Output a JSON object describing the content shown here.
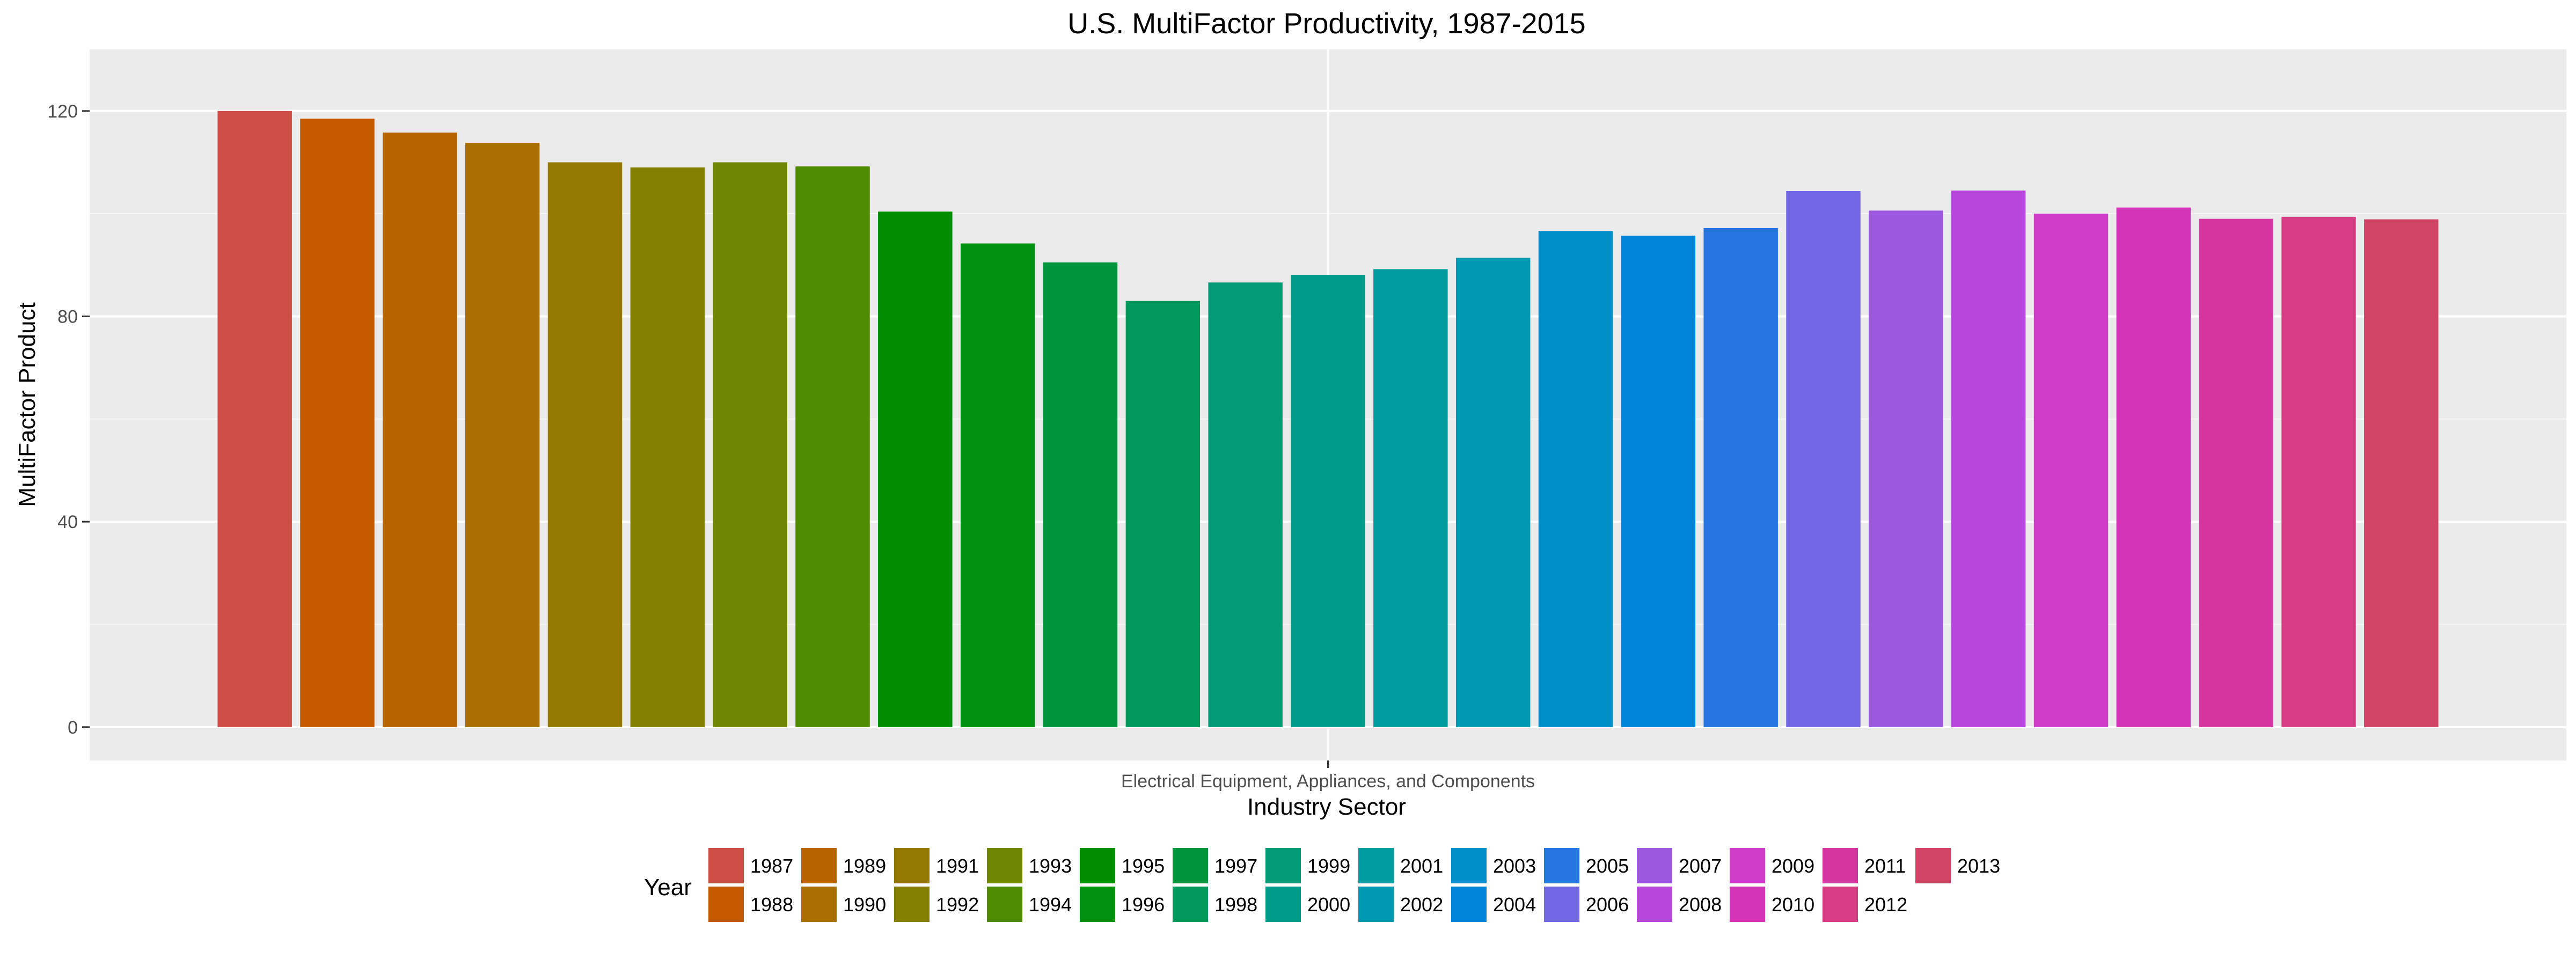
{
  "chart_data": {
    "type": "bar",
    "title": "U.S. MultiFactor Productivity, 1987-2015",
    "xlabel": "Industry Sector",
    "ylabel": "MultiFactor Product",
    "categories": [
      "Electrical Equipment, Appliances, and Components"
    ],
    "ylim": [
      -6.5,
      132
    ],
    "yticks": [
      0,
      40,
      80,
      120
    ],
    "grid": true,
    "legend": {
      "title": "Year",
      "placement": "bottom"
    },
    "series": [
      {
        "name": "1987",
        "value": 120.0,
        "color": "#CC4E45"
      },
      {
        "name": "1988",
        "value": 118.5,
        "color": "#C55A00"
      },
      {
        "name": "1989",
        "value": 115.8,
        "color": "#B66400"
      },
      {
        "name": "1990",
        "value": 113.8,
        "color": "#A86F00"
      },
      {
        "name": "1991",
        "value": 110.0,
        "color": "#957800"
      },
      {
        "name": "1992",
        "value": 109.0,
        "color": "#847F00"
      },
      {
        "name": "1993",
        "value": 110.0,
        "color": "#6D8500"
      },
      {
        "name": "1994",
        "value": 109.2,
        "color": "#4E8B00"
      },
      {
        "name": "1995",
        "value": 100.4,
        "color": "#008E00"
      },
      {
        "name": "1996",
        "value": 94.2,
        "color": "#00920E"
      },
      {
        "name": "1997",
        "value": 90.5,
        "color": "#00953C"
      },
      {
        "name": "1998",
        "value": 83.0,
        "color": "#00995B"
      },
      {
        "name": "1999",
        "value": 86.6,
        "color": "#009B74"
      },
      {
        "name": "2000",
        "value": 88.1,
        "color": "#009C8B"
      },
      {
        "name": "2001",
        "value": 89.2,
        "color": "#009CA0"
      },
      {
        "name": "2002",
        "value": 91.4,
        "color": "#0099B2"
      },
      {
        "name": "2003",
        "value": 96.6,
        "color": "#008FC6"
      },
      {
        "name": "2004",
        "value": 95.7,
        "color": "#0084D8"
      },
      {
        "name": "2005",
        "value": 97.2,
        "color": "#2674E2"
      },
      {
        "name": "2006",
        "value": 104.4,
        "color": "#7368E4"
      },
      {
        "name": "2007",
        "value": 100.6,
        "color": "#9C58DE"
      },
      {
        "name": "2008",
        "value": 104.5,
        "color": "#B846DB"
      },
      {
        "name": "2009",
        "value": 100.0,
        "color": "#CC3DC8"
      },
      {
        "name": "2010",
        "value": 101.2,
        "color": "#D234B5"
      },
      {
        "name": "2011",
        "value": 99.0,
        "color": "#D5359E"
      },
      {
        "name": "2012",
        "value": 99.4,
        "color": "#D63D83"
      },
      {
        "name": "2013",
        "value": 98.9,
        "color": "#D24466"
      }
    ]
  }
}
